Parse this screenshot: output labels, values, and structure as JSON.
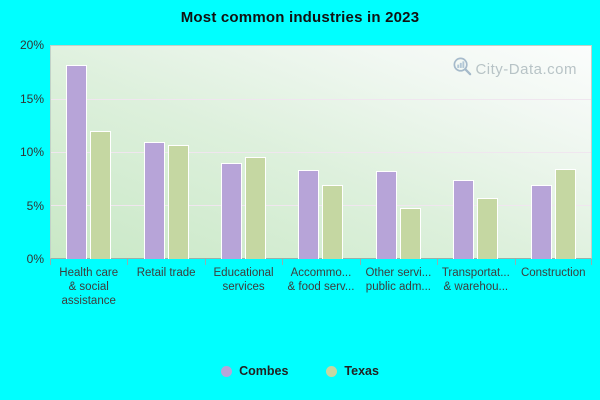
{
  "title": "Most common industries in 2023",
  "watermark": "City-Data.com",
  "colors": {
    "page_background": "#00ffff",
    "combes_bar": "#b7a4d8",
    "texas_bar": "#c5d7a2",
    "title_text": "#111111",
    "axis_text": "#333333",
    "category_text": "#3d3d3d",
    "watermark_text": "#a3b1b6"
  },
  "legend": [
    {
      "label": "Combes",
      "color": "#b7a4d8"
    },
    {
      "label": "Texas",
      "color": "#c5d7a2"
    }
  ],
  "chart_data": {
    "type": "bar",
    "title": "Most common industries in 2023",
    "categories": [
      "Health care & social assistance",
      "Retail trade",
      "Educational services",
      "Accommo... & food serv...",
      "Other servi... public adm...",
      "Transportat... & warehou...",
      "Construction"
    ],
    "category_labels_displayed": [
      [
        "Health care",
        "& social",
        "assistance"
      ],
      [
        "Retail trade"
      ],
      [
        "Educational",
        "services"
      ],
      [
        "Accommo...",
        "& food serv..."
      ],
      [
        "Other servi...",
        "public adm..."
      ],
      [
        "Transportat...",
        "& warehou..."
      ],
      [
        "Construction"
      ]
    ],
    "series": [
      {
        "name": "Combes",
        "color": "#b7a4d8",
        "values": [
          18.1,
          10.9,
          9.0,
          8.3,
          8.2,
          7.4,
          6.9
        ]
      },
      {
        "name": "Texas",
        "color": "#c5d7a2",
        "values": [
          12.0,
          10.7,
          9.5,
          6.9,
          4.8,
          5.7,
          8.4
        ]
      }
    ],
    "xlabel": "",
    "ylabel": "",
    "y_ticks": [
      "0%",
      "5%",
      "10%",
      "15%",
      "20%"
    ],
    "y_tick_values": [
      0,
      5,
      10,
      15,
      20
    ],
    "ylim": [
      0,
      20
    ],
    "grid": true,
    "gridline_values": [
      5,
      10,
      15
    ],
    "legend_position": "bottom"
  }
}
